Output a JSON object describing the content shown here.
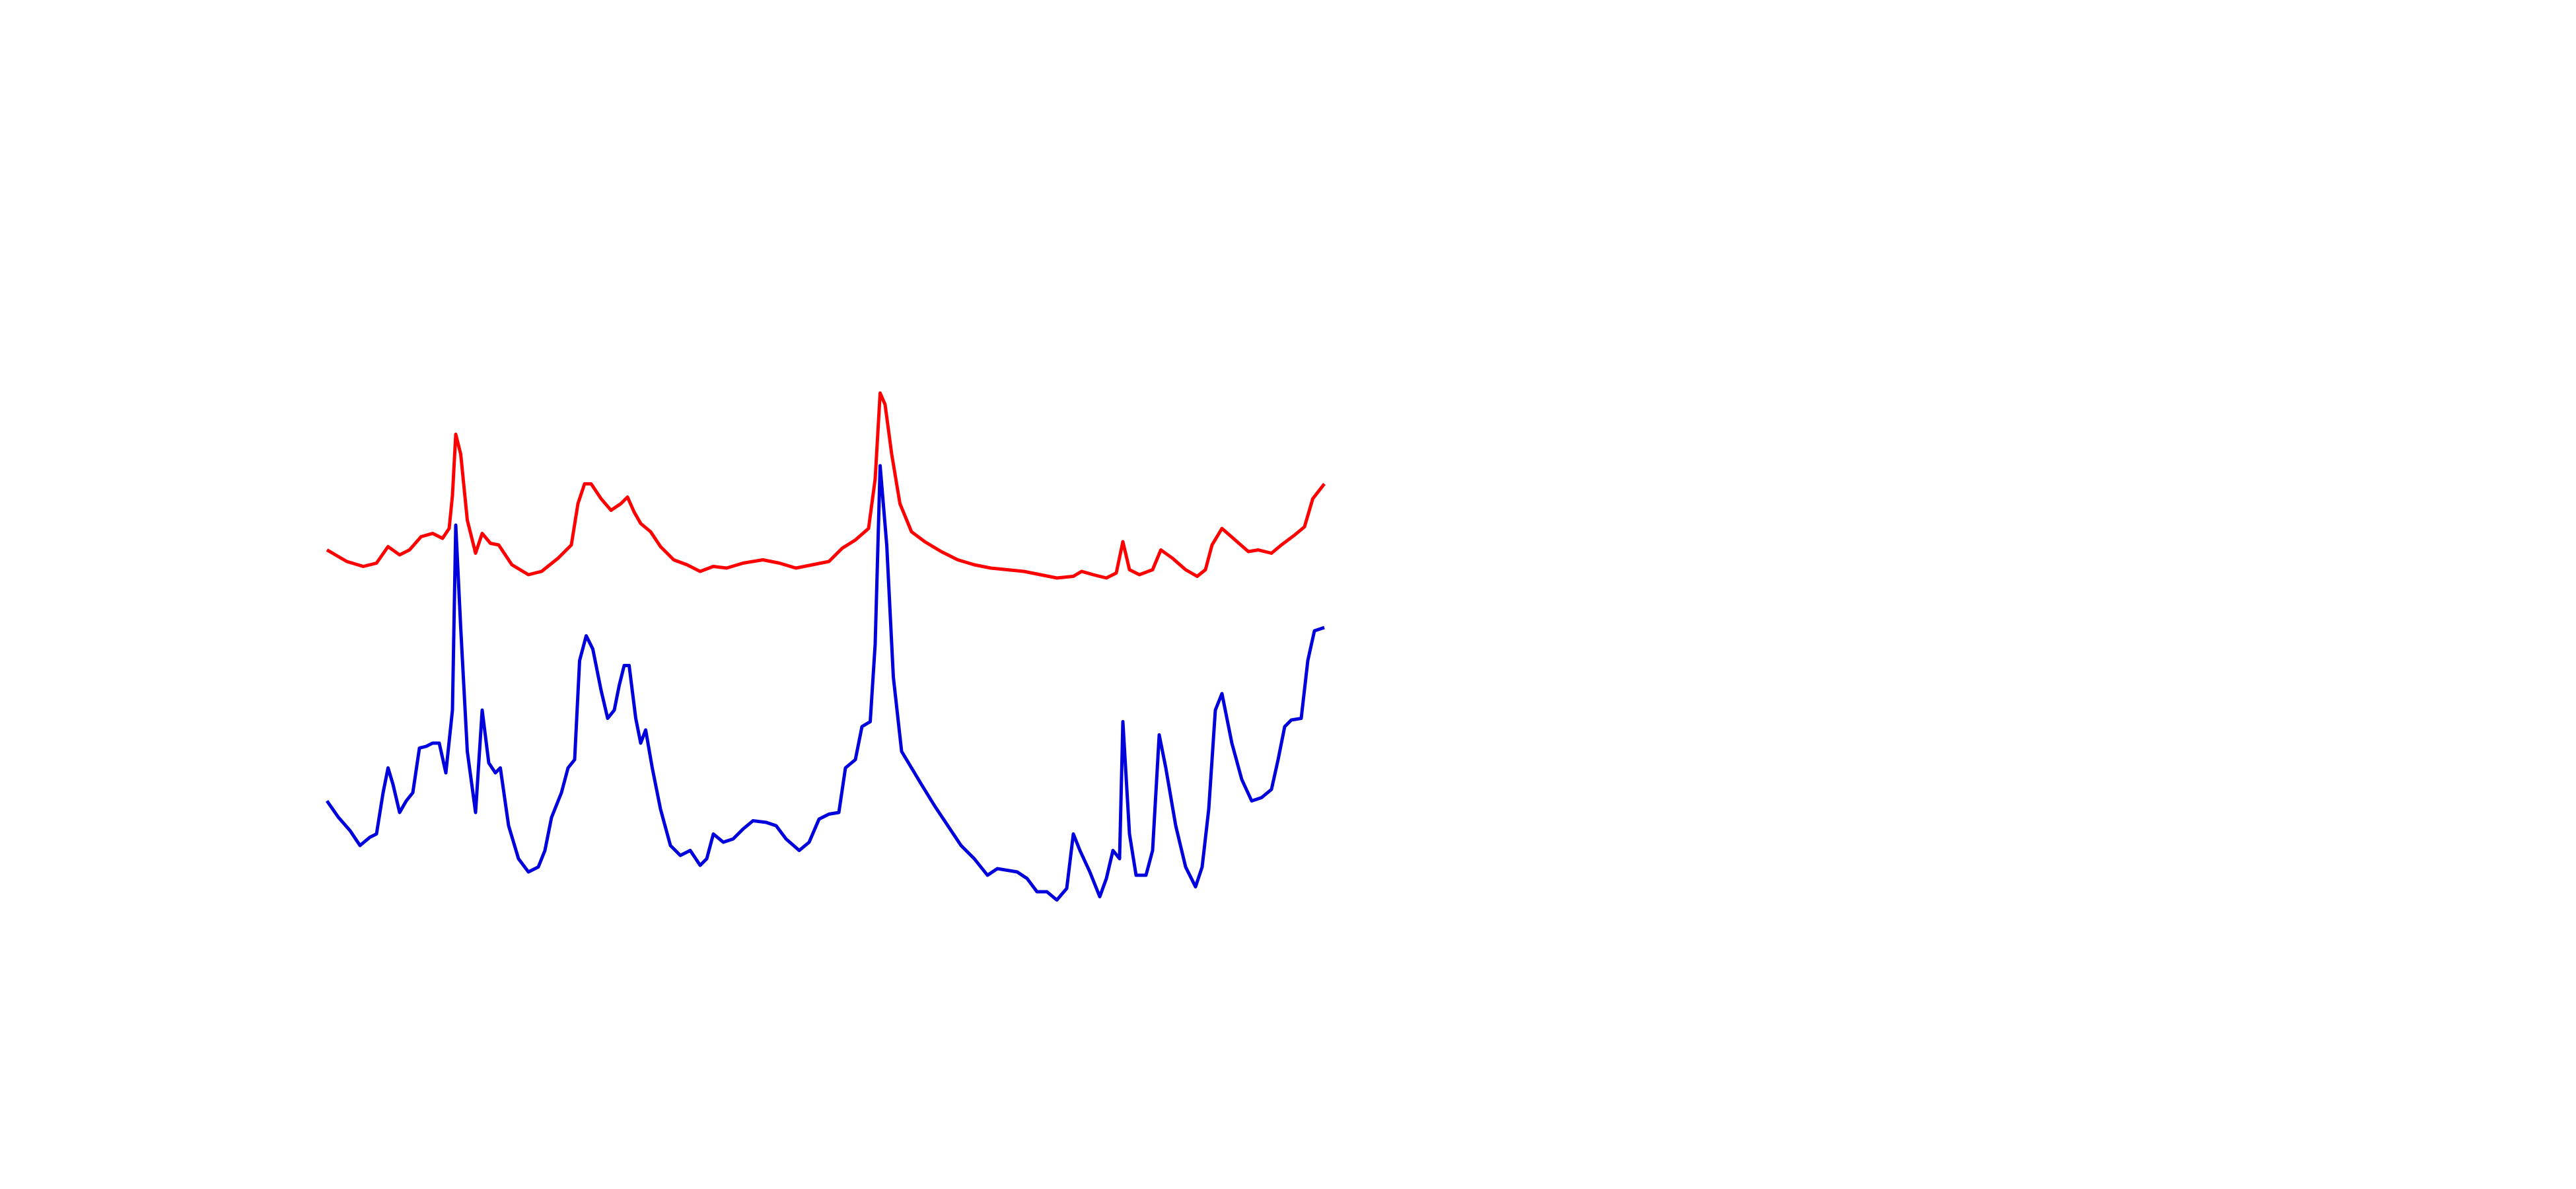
{
  "chart_data": {
    "type": "line",
    "xlim": [
      198,
      802
    ],
    "ylim": [
      0,
      400
    ],
    "series": [
      {
        "color": "#ff0000",
        "x": [
          198,
          210,
          220,
          228,
          235,
          242,
          248,
          255,
          262,
          268,
          272,
          274,
          276,
          279,
          283,
          288,
          292,
          297,
          302,
          310,
          320,
          328,
          338,
          346,
          350,
          354,
          358,
          364,
          370,
          376,
          380,
          384,
          388,
          394,
          400,
          408,
          416,
          424,
          432,
          440,
          450,
          462,
          472,
          482,
          492,
          502,
          510,
          518,
          526,
          530,
          533,
          536,
          540,
          545,
          552,
          560,
          570,
          580,
          590,
          600,
          610,
          620,
          630,
          640,
          650,
          655,
          662,
          670,
          676,
          680,
          684,
          690,
          698,
          703,
          710,
          718,
          725,
          730,
          734,
          740,
          748,
          756,
          762,
          770,
          776,
          784,
          790,
          795,
          802
        ],
        "values": [
          267,
          260,
          257,
          259,
          269,
          264,
          267,
          275,
          277,
          274,
          280,
          300,
          337,
          325,
          285,
          265,
          277,
          271,
          270,
          258,
          252,
          254,
          262,
          270,
          295,
          307,
          307,
          298,
          291,
          295,
          299,
          290,
          283,
          278,
          269,
          261,
          258,
          254,
          257,
          256,
          259,
          261,
          259,
          256,
          258,
          260,
          268,
          273,
          280,
          310,
          362,
          355,
          325,
          295,
          278,
          272,
          266,
          261,
          258,
          256,
          255,
          254,
          252,
          250,
          251,
          254,
          252,
          250,
          253,
          272,
          255,
          252,
          255,
          267,
          262,
          255,
          251,
          255,
          270,
          280,
          273,
          266,
          267,
          265,
          270,
          276,
          281,
          298,
          307
        ]
      },
      {
        "color": "#0000dd",
        "x": [
          198,
          205,
          212,
          218,
          224,
          228,
          232,
          235,
          238,
          242,
          246,
          250,
          254,
          258,
          262,
          266,
          270,
          274,
          276,
          279,
          283,
          288,
          292,
          296,
          300,
          303,
          308,
          314,
          320,
          326,
          330,
          334,
          340,
          344,
          348,
          351,
          355,
          359,
          364,
          368,
          372,
          375,
          378,
          381,
          385,
          388,
          391,
          395,
          400,
          406,
          412,
          418,
          424,
          428,
          432,
          438,
          444,
          450,
          456,
          464,
          470,
          476,
          484,
          490,
          496,
          502,
          508,
          512,
          518,
          522,
          527,
          530,
          533,
          537,
          541,
          546,
          552,
          558,
          566,
          574,
          582,
          590,
          598,
          604,
          610,
          616,
          622,
          628,
          634,
          640,
          646,
          650,
          654,
          660,
          666,
          670,
          674,
          678,
          680,
          684,
          688,
          694,
          698,
          702,
          706,
          712,
          718,
          724,
          728,
          732,
          736,
          740,
          746,
          752,
          758,
          764,
          770,
          774,
          778,
          782,
          788,
          792,
          796,
          802
        ],
        "values": [
          115,
          105,
          97,
          88,
          93,
          95,
          120,
          135,
          125,
          108,
          115,
          120,
          147,
          148,
          150,
          150,
          132,
          170,
          282,
          220,
          145,
          108,
          170,
          138,
          132,
          135,
          100,
          80,
          72,
          75,
          85,
          105,
          120,
          135,
          140,
          200,
          215,
          207,
          182,
          165,
          170,
          185,
          197,
          197,
          165,
          150,
          158,
          135,
          110,
          88,
          82,
          85,
          76,
          80,
          95,
          90,
          92,
          98,
          103,
          102,
          100,
          92,
          85,
          90,
          104,
          107,
          108,
          135,
          140,
          160,
          163,
          210,
          318,
          270,
          190,
          145,
          135,
          125,
          112,
          100,
          88,
          80,
          70,
          74,
          73,
          72,
          68,
          60,
          60,
          55,
          62,
          95,
          85,
          72,
          57,
          68,
          85,
          80,
          163,
          95,
          70,
          70,
          85,
          155,
          135,
          100,
          75,
          63,
          75,
          110,
          170,
          180,
          150,
          128,
          115,
          117,
          122,
          140,
          160,
          164,
          165,
          200,
          218,
          220
        ]
      }
    ]
  }
}
